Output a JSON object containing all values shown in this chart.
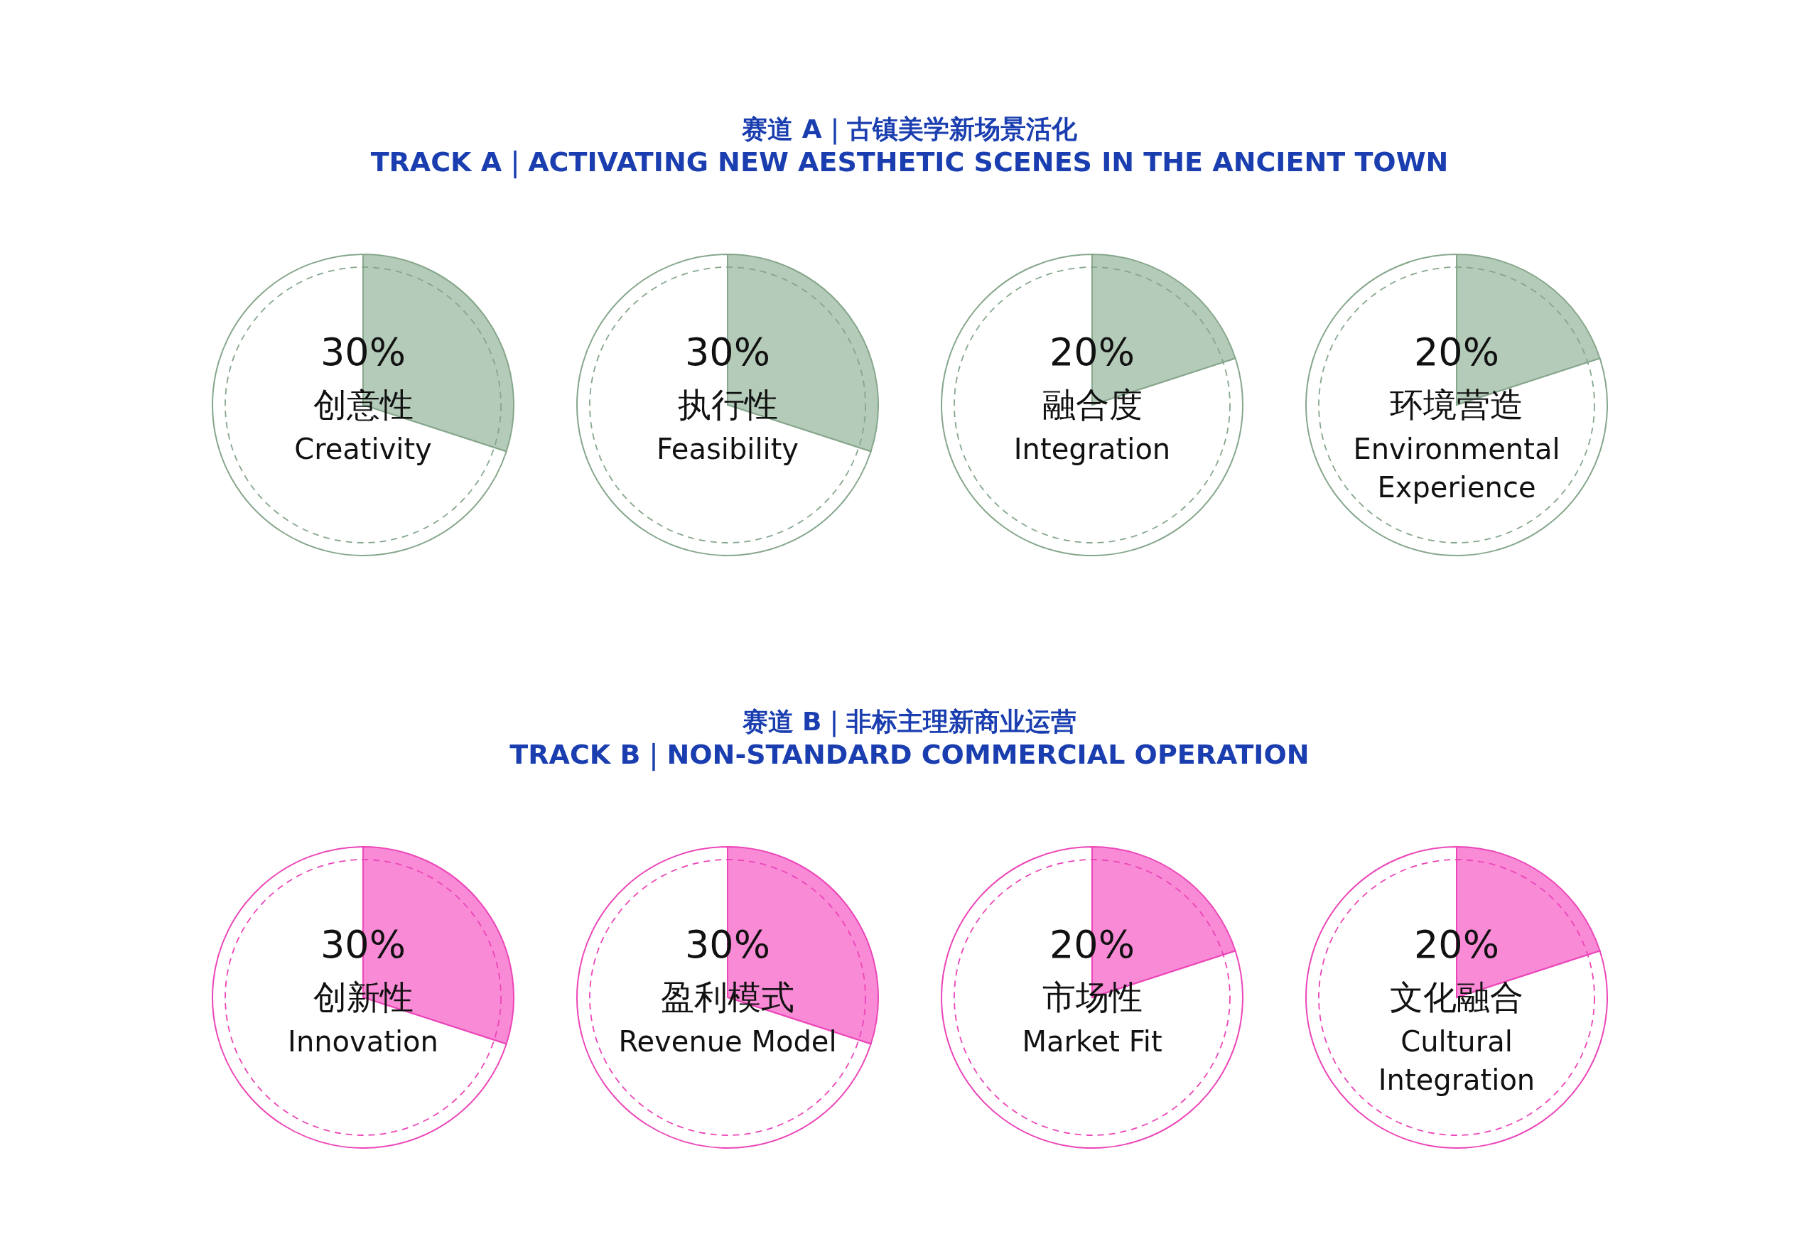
{
  "chart_data": [
    {
      "type": "pie",
      "title": "赛道 A｜古镇美学新场景活化\nTRACK A｜ACTIVATING NEW AESTHETIC SCENES IN THE ANCIENT TOWN",
      "categories": [
        "创意性\nCreativity",
        null
      ],
      "values": [
        30,
        70
      ],
      "colors": [
        "#b5cbb9",
        "#ffffff"
      ],
      "value_labels": [
        "30%",
        null
      ]
    },
    {
      "type": "pie",
      "categories": [
        "执行性\nFeasibility",
        null
      ],
      "values": [
        30,
        70
      ],
      "colors": [
        "#b5cbb9",
        "#ffffff"
      ],
      "value_labels": [
        "30%",
        null
      ]
    },
    {
      "type": "pie",
      "categories": [
        "融合度\nIntegration",
        null
      ],
      "values": [
        20,
        80
      ],
      "colors": [
        "#b5cbb9",
        "#ffffff"
      ],
      "value_labels": [
        "20%",
        null
      ]
    },
    {
      "type": "pie",
      "categories": [
        "环境营造\nEnvironmental\nExperience",
        null
      ],
      "values": [
        20,
        80
      ],
      "colors": [
        "#b5cbb9",
        "#ffffff"
      ],
      "value_labels": [
        "20%",
        null
      ]
    },
    {
      "type": "pie",
      "title": "赛道 B｜非标主理新商业运营\nTRACK B｜NON-STANDARD COMMERCIAL OPERATION",
      "categories": [
        "创新性\nInnovation",
        null
      ],
      "values": [
        30,
        70
      ],
      "colors": [
        "#f98ad6",
        "#ffffff"
      ],
      "value_labels": [
        "30%",
        null
      ]
    },
    {
      "type": "pie",
      "categories": [
        "盈利模式\nRevenue Model",
        null
      ],
      "values": [
        30,
        70
      ],
      "colors": [
        "#f98ad6",
        "#ffffff"
      ],
      "value_labels": [
        "30%",
        null
      ]
    },
    {
      "type": "pie",
      "categories": [
        "市场性\nMarket Fit",
        null
      ],
      "values": [
        20,
        80
      ],
      "colors": [
        "#f98ad6",
        "#ffffff"
      ],
      "value_labels": [
        "20%",
        null
      ]
    },
    {
      "type": "pie",
      "categories": [
        "文化融合\nCultural\nIntegration",
        null
      ],
      "values": [
        20,
        80
      ],
      "colors": [
        "#f98ad6",
        "#ffffff"
      ],
      "value_labels": [
        "20%",
        null
      ]
    }
  ]
}
